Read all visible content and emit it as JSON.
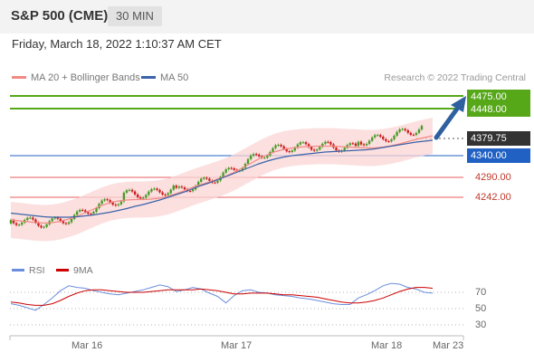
{
  "header": {
    "title": "S&P 500 (CME)",
    "timeframe": "30 MIN"
  },
  "datetime": "Friday, March 18, 2022 1:10:37 AM CET",
  "legend": {
    "ma20": "MA 20 + Bollinger Bands",
    "ma50": "MA 50"
  },
  "credit": "Research © 2022 Trading Central",
  "colors": {
    "resistance": "#56a819",
    "support": "#e0262b",
    "pivot": "#2161c4",
    "current": "#333333",
    "ma20": "#f28a84",
    "ma50": "#3a63a8",
    "band": "#fbd6d6",
    "rsi": "#6a8edb",
    "rsi_ma": "#cc0000",
    "candle_up": "#4a9b2a",
    "candle_down": "#cc1f1f"
  },
  "levels": {
    "r2": "4475.00",
    "r1": "4448.00",
    "current": "4379.75",
    "pivot": "4340.00",
    "s1": "4290.00",
    "s2": "4242.00"
  },
  "indicator_legend": {
    "rsi": "RSI",
    "ma": "9MA"
  },
  "rsi_ticks": [
    "70",
    "50",
    "30"
  ],
  "x_labels": [
    "Mar 16",
    "Mar 17",
    "Mar 18",
    "Mar 23"
  ],
  "chart_data": {
    "type": "line",
    "series": [
      {
        "name": "MA 20 + Bollinger Bands",
        "values": [
          4188,
          4186,
          4184,
          4182,
          4181,
          4182,
          4185,
          4190,
          4196,
          4204,
          4212,
          4220,
          4226,
          4230,
          4232,
          4233,
          4233,
          4234,
          4236,
          4240,
          4246,
          4253,
          4260,
          4266,
          4272,
          4278,
          4285,
          4293,
          4303,
          4313,
          4323,
          4332,
          4339,
          4344,
          4347,
          4349,
          4350,
          4351,
          4351,
          4351,
          4350,
          4349,
          4348,
          4347,
          4347,
          4349,
          4352,
          4356,
          4361,
          4366,
          4370,
          4374
        ]
      },
      {
        "name": "MA 50",
        "values": [
          4203,
          4201,
          4199,
          4197,
          4195,
          4194,
          4194,
          4194,
          4195,
          4197,
          4199,
          4202,
          4205,
          4209,
          4213,
          4218,
          4222,
          4227,
          4232,
          4238,
          4244,
          4250,
          4257,
          4264,
          4270,
          4277,
          4284,
          4291,
          4298,
          4305,
          4312,
          4318,
          4323,
          4327,
          4330,
          4332,
          4334,
          4336,
          4338,
          4339,
          4340,
          4341,
          4342,
          4343,
          4345,
          4348,
          4351,
          4354,
          4357,
          4360,
          4362,
          4364
        ]
      },
      {
        "name": "RSI",
        "values": [
          46,
          44,
          41,
          38,
          45,
          53,
          62,
          68,
          66,
          65,
          62,
          60,
          58,
          57,
          59,
          61,
          63,
          66,
          69,
          67,
          61,
          63,
          66,
          64,
          59,
          55,
          47,
          56,
          62,
          63,
          60,
          59,
          57,
          56,
          55,
          53,
          52,
          50,
          48,
          46,
          45,
          45,
          53,
          57,
          62,
          68,
          71,
          70,
          66,
          64,
          60,
          59
        ]
      },
      {
        "name": "9MA",
        "values": [
          48,
          47,
          45,
          44,
          44,
          46,
          50,
          55,
          59,
          62,
          63,
          63,
          62,
          61,
          60,
          60,
          60,
          61,
          62,
          63,
          63,
          63,
          63,
          64,
          63,
          62,
          60,
          58,
          58,
          59,
          59,
          59,
          58,
          57,
          57,
          56,
          55,
          54,
          52,
          50,
          48,
          47,
          47,
          48,
          50,
          53,
          57,
          61,
          64,
          66,
          66,
          65
        ]
      }
    ],
    "price_range": [
      4150,
      4500
    ],
    "rsi_range": [
      10,
      90
    ]
  }
}
